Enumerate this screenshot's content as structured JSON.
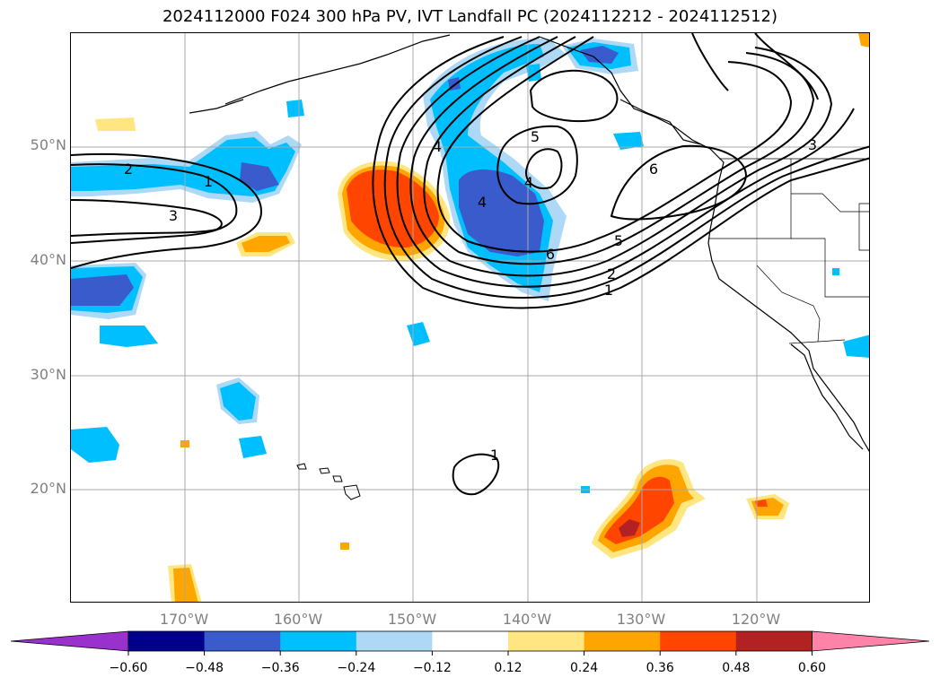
{
  "title": "2024112000 F024 300 hPa PV, IVT Landfall PC (2024112212 - 2024112512)",
  "map": {
    "lat_labels": [
      "50°N",
      "40°N",
      "30°N",
      "20°N"
    ],
    "lon_labels": [
      "170°W",
      "160°W",
      "150°W",
      "140°W",
      "130°W",
      "120°W"
    ],
    "contour_labels": [
      "1",
      "2",
      "3",
      "4",
      "5",
      "6"
    ],
    "extent": {
      "lon": [
        -180,
        -110
      ],
      "lat": [
        10,
        60
      ]
    },
    "gridlines": true
  },
  "colorbar": {
    "ticks": [
      "−0.60",
      "−0.48",
      "−0.36",
      "−0.24",
      "−0.12",
      "0.12",
      "0.24",
      "0.36",
      "0.48",
      "0.60"
    ],
    "colors": [
      "#9932cc",
      "#00008b",
      "#3a5bcc",
      "#00bfff",
      "#add8f6",
      "#ffffff",
      "#ffe680",
      "#ffa500",
      "#ff4500",
      "#b22222",
      "#ff82a9"
    ],
    "extend": "both"
  },
  "colors": {
    "pos1": "#ffe680",
    "pos2": "#ffa500",
    "pos3": "#ff4500",
    "pos4": "#b22222",
    "neg1": "#add8f6",
    "neg2": "#00bfff",
    "neg3": "#3a5bcc"
  }
}
